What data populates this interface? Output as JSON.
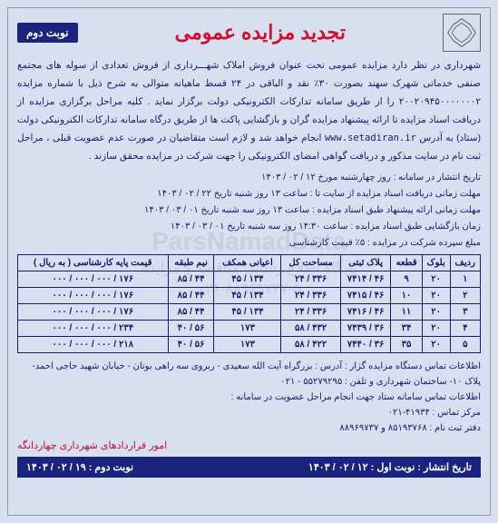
{
  "header": {
    "title": "تجدید مزایده عمومی",
    "badge": "نوبت دوم"
  },
  "body": {
    "paragraph": "شهرداری در نظر دارد مزایده عمومی تحت عنوان فروش املاک شهـــرداری از فروش تعدادی از سوله های مجتمع صنفی خدماتی شهرک سهند بصورت ۳۰٪ نقد و الباقی در ۲۴ قسط ماهیانه متوالی به شرح ذیل با شماره مزایده ۲۰۰۲۰۹۴۵۰۰۰۰۰۰۰۲ را از طریق سامانه تدارکات الکترونیکی دولت برگزار نماید . کلیه مراحل برگزاری مزایده از دریافت اسناد مزایده تا ارائه پیشنهاد مزایده گران و بازگشایی پاکت ها از طریق درگاه سامانه تدارکات الکترونیکی دولت (ستاد) به آدرس ",
    "url": "www.setadiran.ir",
    "paragraph2": " انجام خواهد شد و لازم است متقاضیان در صورت عدم عضویت قبلی ، مراحل ثبت نام در سایت مذکور و دریافت گواهی امضای الکترونیکی را جهت شرکت در مزایده محقق سازند ."
  },
  "schedule": {
    "line1": "تاریخ انتشار در سامانه : روز چهارشنبه مورخ ۱۲ / ۰۲ / ۱۴۰۳",
    "line2": "مهلت زمانی دریافت اسناد مزایده از سایت تا : ساعت ۱۳ روز شنبه تاریخ ۲۲ / ۰۲ / ۱۴۰۳",
    "line3": "مهلت زمانی ارائه پیشنهاد طبق اسناد مزایده : ساعت ۱۳ روز سه شنبه تاریخ ۰۱ / ۰۳ / ۱۴۰۳",
    "line4": "زمان بازگشایی طبق اسناد مزایده : ساعت ۱۴:۳۰ روز سه شنبه تاریخ ۰۱ / ۰۳ / ۱۴۰۳",
    "line5": "مبلغ سپرده شرکت در مزایده : ۵٪ قیمت کارشناسی"
  },
  "table": {
    "columns": [
      "ردیف",
      "بلوک",
      "قطعه",
      "پلاک ثبتی",
      "مساحت کل",
      "اعیانی همکف",
      "نیم طبقه",
      "قیمت پایه کارشناسی ( به ریال )"
    ],
    "rows": [
      [
        "۱",
        "۲۰",
        "۹",
        "۴۶ / ۷۴۱۴",
        "۳۳۶ / ۲۴",
        "۱۳۴ / ۴۵",
        "۴۴ / ۸۵",
        "۱۷۶ / ۰۰۰ / ۰۰۰ / ۰۰۰"
      ],
      [
        "۲",
        "۲۰",
        "۱۰",
        "۴۶ / ۷۴۱۵",
        "۳۳۶ / ۲۴",
        "۱۳۴ / ۴۵",
        "۴۴ / ۸۵",
        "۱۷۶ / ۰۰۰ / ۰۰۰ / ۰۰۰"
      ],
      [
        "۳",
        "۲۰",
        "۱۱",
        "۴۶ / ۷۴۱۶",
        "۳۳۶ / ۲۴",
        "۱۳۴ / ۴۵",
        "۴۴ / ۸۵",
        "۱۷۶ / ۰۰۰ / ۰۰۰ / ۰۰۰"
      ],
      [
        "۴",
        "۲۰",
        "۳۴",
        "۳۶ / ۷۴۳۹",
        "۴۳۲ / ۵۸",
        "۱۷۳",
        "۵۶ / ۴۰",
        "۲۳۴ / ۰۰۰ / ۰۰۰ / ۰۰۰"
      ],
      [
        "۵",
        "۲۰",
        "۳۵",
        "۳۶ / ۷۴۴۰",
        "۴۲۲ / ۵۸",
        "۱۷۳",
        "۵۶ / ۴۰",
        "۲۱۸ / ۰۰۰ / ۰۰۰ / ۰۰۰"
      ]
    ]
  },
  "contact": {
    "line1": "اطلاعات تماس دستگاه مزایده گزار : آدرس : بزرگراه آیت الله سعیدی - ربروی سه راهی بوتان - خیابان شهید حاجی احمد- پلاک ۱۰- ساختمان شهرداری و تلفن : ۵۵۲۷۹۲۹۵ - ۰۲۱",
    "line2": "اطلاعات تماس سامانه ستاد جهت انجام مراحل عضویت در سامانه :",
    "line3": "مرکز تماس : ۴۱۹۳۴-۰۲۱",
    "line4": "دفتر ثبت نام : ۸۵۱۹۳۷۶۸ و ۸۸۹۶۹۷۳۷"
  },
  "footer_link": "امور قراردادهای شهرداری چهاردانگه",
  "footer_bar": {
    "right": "تاریخ انتشار : نوبت اول : ۱۲ / ۰۲ / ۱۴۰۳",
    "left": "نوبت دوم : ۱۹ / ۰۲ / ۱۴۰۳"
  },
  "watermark": {
    "main": "ParsNamadData",
    "sub1": "پایگاه اطلاع رسانی مناقصه و مزایده",
    "sub2": "۰۲۱-۸۸۹۶۹۷۳۷-۵"
  },
  "colors": {
    "background": "#d8dff0",
    "text_primary": "#1a1a6a",
    "accent_red": "#d01030",
    "badge_bg": "#1a237e"
  }
}
